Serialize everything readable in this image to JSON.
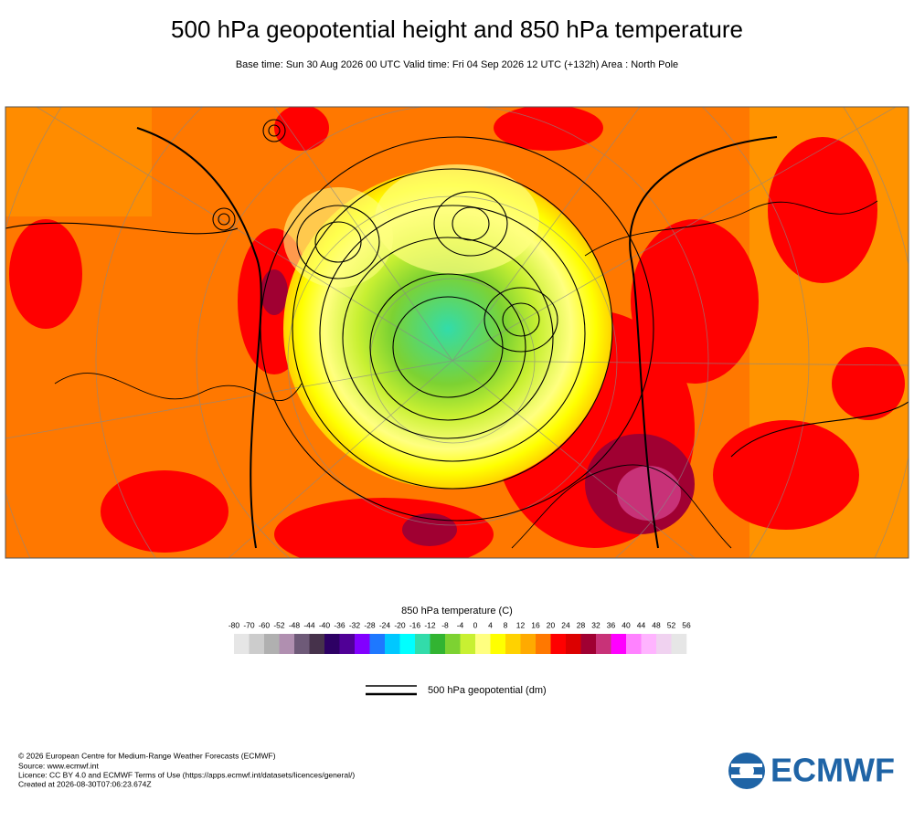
{
  "header": {
    "title": "500 hPa geopotential height and 850 hPa temperature",
    "subtitle": "Base time: Sun 30 Aug 2026 00 UTC Valid time: Fri 04 Sep 2026 12 UTC (+132h) Area : North Pole"
  },
  "colorbar": {
    "title": "850 hPa temperature (C)",
    "ticks": [
      -80,
      -70,
      -60,
      -52,
      -48,
      -44,
      -40,
      -36,
      -32,
      -28,
      -24,
      -20,
      -16,
      -12,
      -8,
      -4,
      0,
      4,
      8,
      12,
      16,
      20,
      24,
      28,
      32,
      36,
      40,
      44,
      48,
      52,
      56
    ],
    "colors": [
      "#e6e6e6",
      "#cccccc",
      "#b0b0b0",
      "#b08fb0",
      "#6e5a78",
      "#46324b",
      "#2d0064",
      "#500096",
      "#8200ff",
      "#1e78ff",
      "#00c8ff",
      "#00ffff",
      "#32dcaa",
      "#32b432",
      "#7dd232",
      "#c8f032",
      "#ffff80",
      "#ffff00",
      "#ffd200",
      "#ffaa00",
      "#ff7800",
      "#ff0000",
      "#dc0000",
      "#a00032",
      "#c83278",
      "#ff00ff",
      "#ff82ff",
      "#ffb4ff",
      "#f0d2f0",
      "#e6e6e6"
    ]
  },
  "legend": {
    "label": "500 hPa geopotential (dm)"
  },
  "footer": {
    "lines": [
      "© 2026 European Centre for Medium-Range Weather Forecasts (ECMWF)",
      "Source: www.ecmwf.int",
      "Licence: CC BY 4.0 and ECMWF Terms of Use (https://apps.ecmwf.int/datasets/licences/general/)",
      "Created at 2026-08-30T07:06:23.674Z"
    ]
  },
  "logo": {
    "text": "ECMWF"
  }
}
